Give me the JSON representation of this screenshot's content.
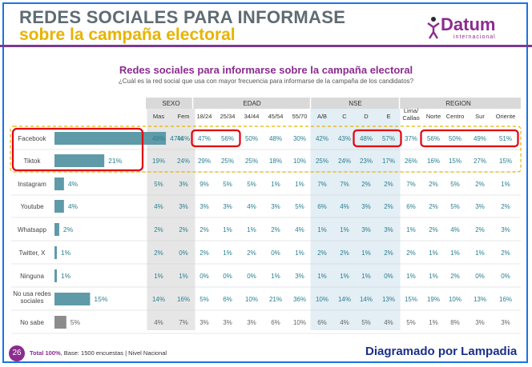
{
  "header": {
    "title_line1": "REDES SOCIALES PARA INFORMASE",
    "title_line2": "sobre la campaña electoral",
    "logo_name": "Datum",
    "logo_sub": "internacional"
  },
  "footer": {
    "page_number": "26",
    "total": "Total 100%",
    "base": "Base: 1500 encuestas",
    "scope": "Nivel Nacional",
    "credit": "Diagramado por Lampadia"
  },
  "colors": {
    "brand": "#8b2c8f",
    "bar": "#5e9aa8",
    "bar_gray": "#8c8c8c",
    "highlight": "#e3000f",
    "dashed": "#e8b300",
    "value_text": "#2a7f8f"
  },
  "chart_data": {
    "type": "bar",
    "title": "Redes sociales para informarse sobre la campaña electoral",
    "subtitle": "¿Cuál es la red social que usa con mayor frecuencia para informarse de la campaña de los candidatos?",
    "categories": [
      "Facebook",
      "Tiktok",
      "Instagram",
      "Youtube",
      "Whatsapp",
      "Twitter, X",
      "Ninguna",
      "No usa redes sociales",
      "No sabe"
    ],
    "values": [
      47,
      21,
      4,
      4,
      2,
      1,
      1,
      15,
      5
    ],
    "value_labels": [
      "47%",
      "21%",
      "4%",
      "4%",
      "2%",
      "1%",
      "1%",
      "15%",
      "5%"
    ],
    "xlim": [
      0,
      50
    ],
    "groups": [
      {
        "name": "SEXO",
        "columns": [
          "Mas",
          "Fem"
        ]
      },
      {
        "name": "EDAD",
        "columns": [
          "18/24",
          "25/34",
          "34/44",
          "45/54",
          "55/70"
        ]
      },
      {
        "name": "NSE",
        "columns": [
          "A/B",
          "C",
          "D",
          "E"
        ]
      },
      {
        "name": "REGION",
        "columns": [
          "Lima/ Callao",
          "Norte",
          "Centro",
          "Sur",
          "Oriente"
        ]
      }
    ],
    "table": [
      [
        "49%",
        "44%",
        "47%",
        "56%",
        "50%",
        "48%",
        "30%",
        "42%",
        "43%",
        "48%",
        "57%",
        "37%",
        "56%",
        "50%",
        "49%",
        "51%"
      ],
      [
        "19%",
        "24%",
        "29%",
        "25%",
        "25%",
        "18%",
        "10%",
        "25%",
        "24%",
        "23%",
        "17%",
        "26%",
        "16%",
        "15%",
        "27%",
        "15%"
      ],
      [
        "5%",
        "3%",
        "9%",
        "5%",
        "5%",
        "1%",
        "1%",
        "7%",
        "7%",
        "2%",
        "2%",
        "7%",
        "2%",
        "5%",
        "2%",
        "1%"
      ],
      [
        "4%",
        "3%",
        "3%",
        "3%",
        "4%",
        "3%",
        "5%",
        "6%",
        "4%",
        "3%",
        "2%",
        "6%",
        "2%",
        "5%",
        "3%",
        "2%"
      ],
      [
        "2%",
        "2%",
        "2%",
        "1%",
        "1%",
        "2%",
        "4%",
        "1%",
        "1%",
        "3%",
        "3%",
        "1%",
        "2%",
        "4%",
        "2%",
        "3%"
      ],
      [
        "2%",
        "0%",
        "2%",
        "1%",
        "2%",
        "0%",
        "1%",
        "2%",
        "2%",
        "1%",
        "2%",
        "2%",
        "1%",
        "1%",
        "1%",
        "2%"
      ],
      [
        "1%",
        "1%",
        "0%",
        "0%",
        "0%",
        "1%",
        "3%",
        "1%",
        "1%",
        "1%",
        "0%",
        "1%",
        "1%",
        "2%",
        "0%",
        "0%"
      ],
      [
        "14%",
        "16%",
        "5%",
        "6%",
        "10%",
        "21%",
        "36%",
        "10%",
        "14%",
        "14%",
        "13%",
        "15%",
        "19%",
        "10%",
        "13%",
        "16%"
      ],
      [
        "4%",
        "7%",
        "3%",
        "3%",
        "3%",
        "6%",
        "10%",
        "6%",
        "4%",
        "5%",
        "4%",
        "5%",
        "1%",
        "8%",
        "3%",
        "3%"
      ]
    ],
    "highlighted_cells": [
      {
        "row": 0,
        "from_col": 2,
        "to_col": 3
      },
      {
        "row": 0,
        "from_col": 9,
        "to_col": 10
      },
      {
        "row": 0,
        "from_col": 12,
        "to_col": 15
      }
    ],
    "highlighted_rows": [
      0,
      1
    ]
  }
}
